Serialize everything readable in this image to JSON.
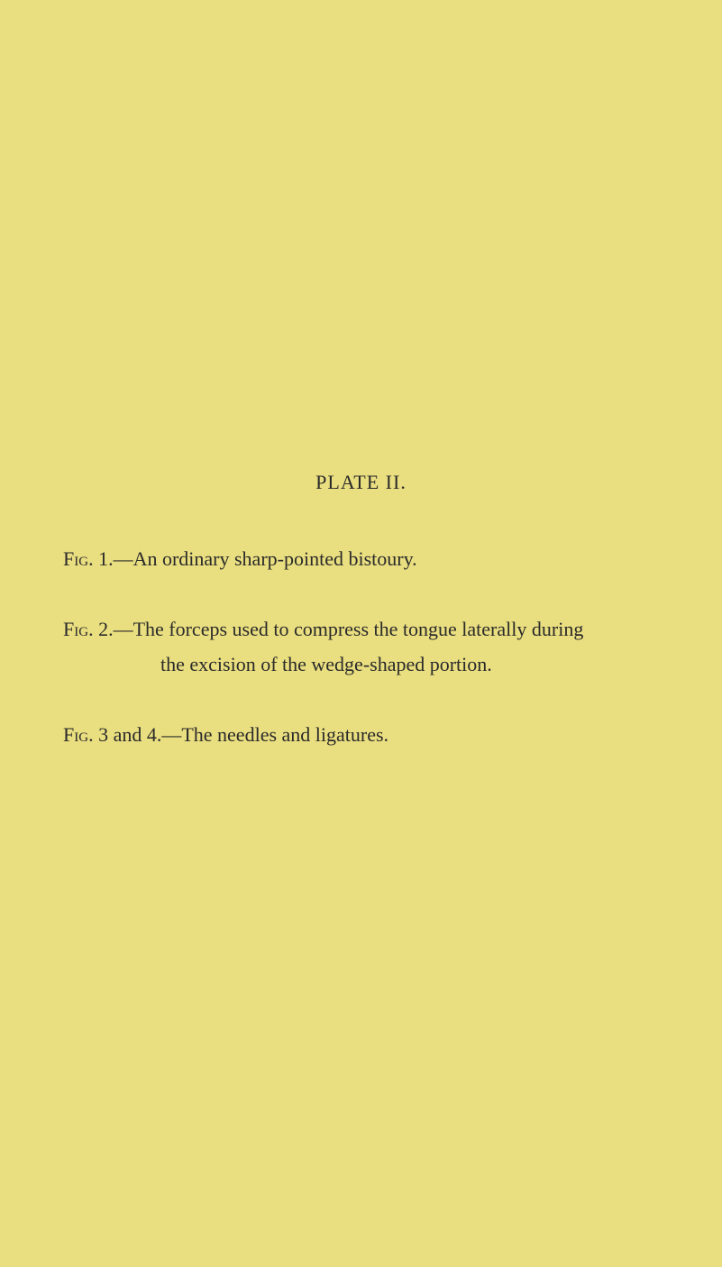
{
  "page": {
    "background_color": "#eadf80",
    "text_color": "#2a2a2a",
    "font_family": "Georgia, Times New Roman, serif",
    "title_fontsize": 22,
    "body_fontsize": 22,
    "line_height": 1.8
  },
  "title": "PLATE II.",
  "figures": [
    {
      "label": "Fig.",
      "number": "1.",
      "text": "—An ordinary sharp-pointed bistoury."
    },
    {
      "label": "Fig.",
      "number": "2.",
      "text": "—The forceps used to compress the tongue laterally during",
      "continuation": "the excision of the wedge-shaped portion."
    },
    {
      "label": "Fig.",
      "number": "3 and 4.",
      "text": "—The needles and ligatures."
    }
  ]
}
